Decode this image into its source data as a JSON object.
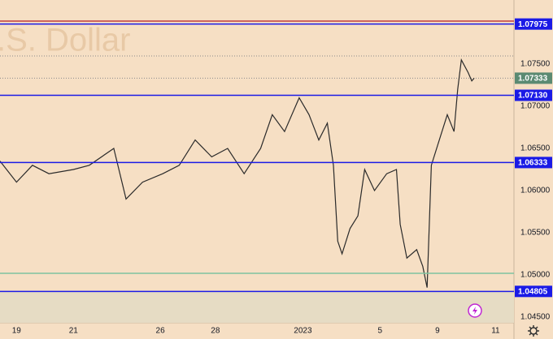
{
  "chart_data": {
    "type": "line",
    "watermark": ".S. Dollar",
    "xlim": [
      0,
      84
    ],
    "ylim": [
      1.04433,
      1.0826
    ],
    "grid": false,
    "xticks": [
      {
        "value": 2.7,
        "label": "19"
      },
      {
        "value": 12,
        "label": "21"
      },
      {
        "value": 26.2,
        "label": "26"
      },
      {
        "value": 35.2,
        "label": "28"
      },
      {
        "value": 49.5,
        "label": "2023"
      },
      {
        "value": 62.1,
        "label": "5"
      },
      {
        "value": 71.5,
        "label": "9"
      },
      {
        "value": 81,
        "label": "11"
      }
    ],
    "yticks": [
      {
        "value": 1.075,
        "label": "1.07500"
      },
      {
        "value": 1.07,
        "label": "1.07000"
      },
      {
        "value": 1.065,
        "label": "1.06500"
      },
      {
        "value": 1.06,
        "label": "1.06000"
      },
      {
        "value": 1.055,
        "label": "1.05500"
      },
      {
        "value": 1.05,
        "label": "1.05000"
      },
      {
        "value": 1.045,
        "label": "1.04500"
      }
    ],
    "series": [
      {
        "color": "#2a2a2a",
        "x": [
          0,
          2.7,
          5.3,
          8,
          12,
          14.6,
          18.6,
          20.6,
          23.3,
          26.6,
          29.3,
          31.9,
          34.6,
          37.2,
          39.9,
          42.6,
          44.5,
          46.5,
          48.9,
          50.5,
          52.1,
          53.5,
          54.5,
          55.2,
          55.9,
          57.2,
          58.5,
          59.6,
          61.2,
          63.2,
          64.8,
          65.4,
          66.5,
          68.1,
          69.1,
          69.8,
          70.5,
          71.8,
          73.1,
          74.2,
          74.8,
          75.4,
          76.5,
          77.1,
          77.5
        ],
        "values": [
          1.0635,
          1.061,
          1.063,
          1.062,
          1.0625,
          1.063,
          1.065,
          1.059,
          1.061,
          1.062,
          1.063,
          1.066,
          1.064,
          1.065,
          1.062,
          1.065,
          1.069,
          1.067,
          1.071,
          1.069,
          1.066,
          1.068,
          1.063,
          1.054,
          1.0525,
          1.0555,
          1.057,
          1.0625,
          1.06,
          1.062,
          1.0625,
          1.056,
          1.052,
          1.053,
          1.051,
          1.0485,
          1.063,
          1.066,
          1.069,
          1.067,
          1.072,
          1.0755,
          1.074,
          1.073,
          1.07333
        ]
      }
    ],
    "levels": [
      {
        "value": 1.0801,
        "color": "#c23b3b"
      },
      {
        "value": 1.07975,
        "color": "#1a1ae6"
      },
      {
        "value": 1.0713,
        "label": "1.07130",
        "color": "#1a1ae6"
      },
      {
        "value": 1.06333,
        "color": "#1a1ae6"
      },
      {
        "value": 1.0502,
        "color": "#7fc4a0"
      },
      {
        "value": 1.04805,
        "color": "#1a1ae6"
      }
    ],
    "high_line": 1.07596,
    "last_price": {
      "value": 1.07333,
      "color": "#5b8a72"
    }
  }
}
